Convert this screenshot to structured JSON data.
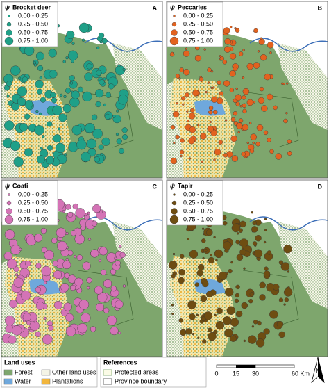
{
  "panels": [
    {
      "letter": "A",
      "symbol": "ψ",
      "title": "Brocket deer",
      "legend": [
        "0.00 - 0.25",
        "0.25 - 0.50",
        "0.50 - 0.75",
        "0.75 - 1.00"
      ]
    },
    {
      "letter": "B",
      "symbol": "ψ",
      "title": "Peccaries",
      "legend": [
        "0.00 - 0.25",
        "0.25 - 0.50",
        "0.50 - 0.75",
        "0.75 - 1.00"
      ]
    },
    {
      "letter": "C",
      "symbol": "ψ",
      "title": "Coati",
      "legend": [
        "0.00 - 0.25",
        "0.25 - 0.50",
        "0.50 - 0.75",
        "0.75 - 1.00"
      ]
    },
    {
      "letter": "D",
      "symbol": "ψ",
      "title": "Tapir",
      "legend": [
        "0.00 - 0.25",
        "0.25 - 0.50",
        "0.50 - 0.75",
        "0.75 - 1.00"
      ]
    }
  ],
  "land_uses": {
    "title": "Land uses",
    "items": [
      "Forest",
      "Other land uses",
      "Water",
      "Plantations"
    ]
  },
  "references": {
    "title": "References",
    "items": [
      "Protected areas",
      "Province boundary"
    ]
  },
  "scale_bar": {
    "labels": [
      "0",
      "15",
      "30",
      "60 Km"
    ]
  },
  "north": "N"
}
